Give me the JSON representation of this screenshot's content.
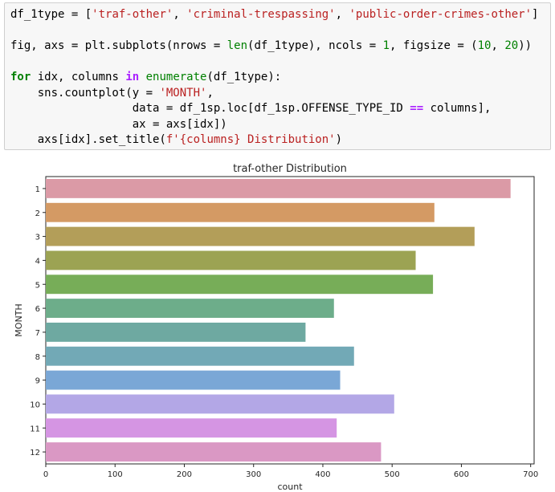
{
  "code": {
    "lines": [
      [
        {
          "t": "df_1type = [",
          "c": ""
        },
        {
          "t": "'traf-other'",
          "c": "str"
        },
        {
          "t": ", ",
          "c": ""
        },
        {
          "t": "'criminal-trespassing'",
          "c": "str"
        },
        {
          "t": ", ",
          "c": ""
        },
        {
          "t": "'public-order-crimes-other'",
          "c": "str"
        },
        {
          "t": "]",
          "c": ""
        }
      ],
      [],
      [
        {
          "t": "fig, axs = plt.subplots(nrows = ",
          "c": ""
        },
        {
          "t": "len",
          "c": "bi"
        },
        {
          "t": "(df_1type), ncols = ",
          "c": ""
        },
        {
          "t": "1",
          "c": "num"
        },
        {
          "t": ", figsize = (",
          "c": ""
        },
        {
          "t": "10",
          "c": "num"
        },
        {
          "t": ", ",
          "c": ""
        },
        {
          "t": "20",
          "c": "num"
        },
        {
          "t": "))",
          "c": ""
        }
      ],
      [],
      [
        {
          "t": "for",
          "c": "kw"
        },
        {
          "t": " idx, columns ",
          "c": ""
        },
        {
          "t": "in",
          "c": "op"
        },
        {
          "t": " ",
          "c": ""
        },
        {
          "t": "enumerate",
          "c": "bi"
        },
        {
          "t": "(df_1type):",
          "c": ""
        }
      ],
      [
        {
          "t": "    sns.countplot(y = ",
          "c": ""
        },
        {
          "t": "'MONTH'",
          "c": "str"
        },
        {
          "t": ",",
          "c": ""
        }
      ],
      [
        {
          "t": "                  data = df_1sp.loc[df_1sp.OFFENSE_TYPE_ID ",
          "c": ""
        },
        {
          "t": "==",
          "c": "op"
        },
        {
          "t": " columns],",
          "c": ""
        }
      ],
      [
        {
          "t": "                  ax = axs[idx])",
          "c": ""
        }
      ],
      [
        {
          "t": "    axs[idx].set_title(",
          "c": ""
        },
        {
          "t": "f'{columns} Distribution'",
          "c": "str"
        },
        {
          "t": ")",
          "c": ""
        }
      ]
    ]
  },
  "chart_data": {
    "type": "bar",
    "orientation": "horizontal",
    "title": "traf-other Distribution",
    "xlabel": "count",
    "ylabel": "MONTH",
    "categories": [
      "1",
      "2",
      "3",
      "4",
      "5",
      "6",
      "7",
      "8",
      "9",
      "10",
      "11",
      "12"
    ],
    "values": [
      671,
      561,
      619,
      534,
      559,
      416,
      375,
      445,
      425,
      503,
      420,
      484
    ],
    "colors": [
      "#db9aa6",
      "#d49a64",
      "#b39e59",
      "#9ca353",
      "#77ad58",
      "#6dad8a",
      "#6ea9a1",
      "#72a9b6",
      "#7aa7d6",
      "#b3a7e6",
      "#d595e3",
      "#da98c4"
    ],
    "xticks": [
      0,
      100,
      200,
      300,
      400,
      500,
      600,
      700
    ],
    "xlim": [
      0,
      705
    ],
    "grid": false
  }
}
